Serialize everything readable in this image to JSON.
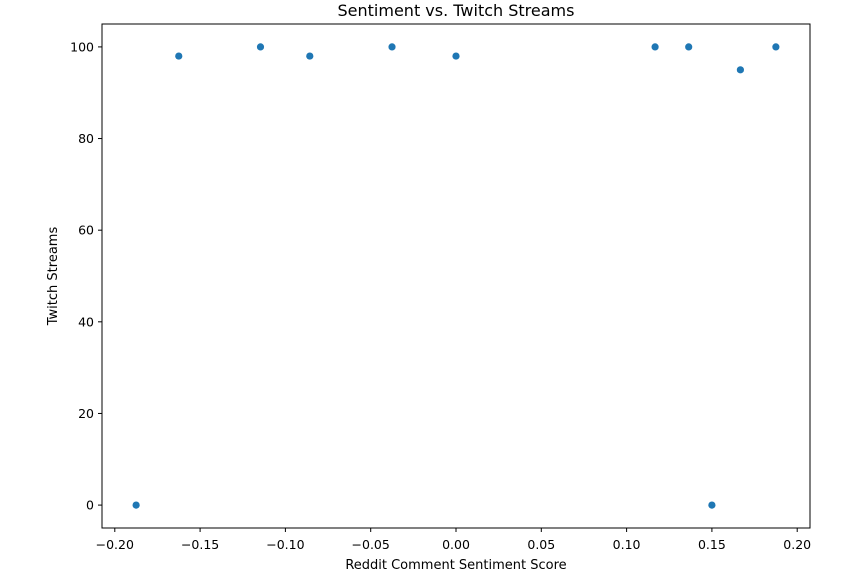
{
  "chart_data": {
    "type": "scatter",
    "title": "Sentiment vs. Twitch Streams",
    "xlabel": "Reddit Comment Sentiment Score",
    "ylabel": "Twitch Streams",
    "xlim": [
      -0.2075,
      0.2075
    ],
    "ylim": [
      -5,
      105
    ],
    "x_ticks": [
      -0.2,
      -0.15,
      -0.1,
      -0.05,
      0.0,
      0.05,
      0.1,
      0.15,
      0.2
    ],
    "x_tick_labels": [
      "−0.20",
      "−0.15",
      "−0.10",
      "−0.05",
      "0.00",
      "0.05",
      "0.10",
      "0.15",
      "0.20"
    ],
    "y_ticks": [
      0,
      20,
      40,
      60,
      80,
      100
    ],
    "y_tick_labels": [
      "0",
      "20",
      "40",
      "60",
      "80",
      "100"
    ],
    "grid": false,
    "marker_color": "#1f77b4",
    "points": [
      {
        "x": -0.1875,
        "y": 0
      },
      {
        "x": -0.1625,
        "y": 98
      },
      {
        "x": -0.1146,
        "y": 100
      },
      {
        "x": -0.0857,
        "y": 98
      },
      {
        "x": -0.0375,
        "y": 100
      },
      {
        "x": 0.0,
        "y": 98
      },
      {
        "x": 0.1167,
        "y": 100
      },
      {
        "x": 0.1364,
        "y": 100
      },
      {
        "x": 0.15,
        "y": 0
      },
      {
        "x": 0.1667,
        "y": 95
      },
      {
        "x": 0.1875,
        "y": 100
      }
    ]
  }
}
